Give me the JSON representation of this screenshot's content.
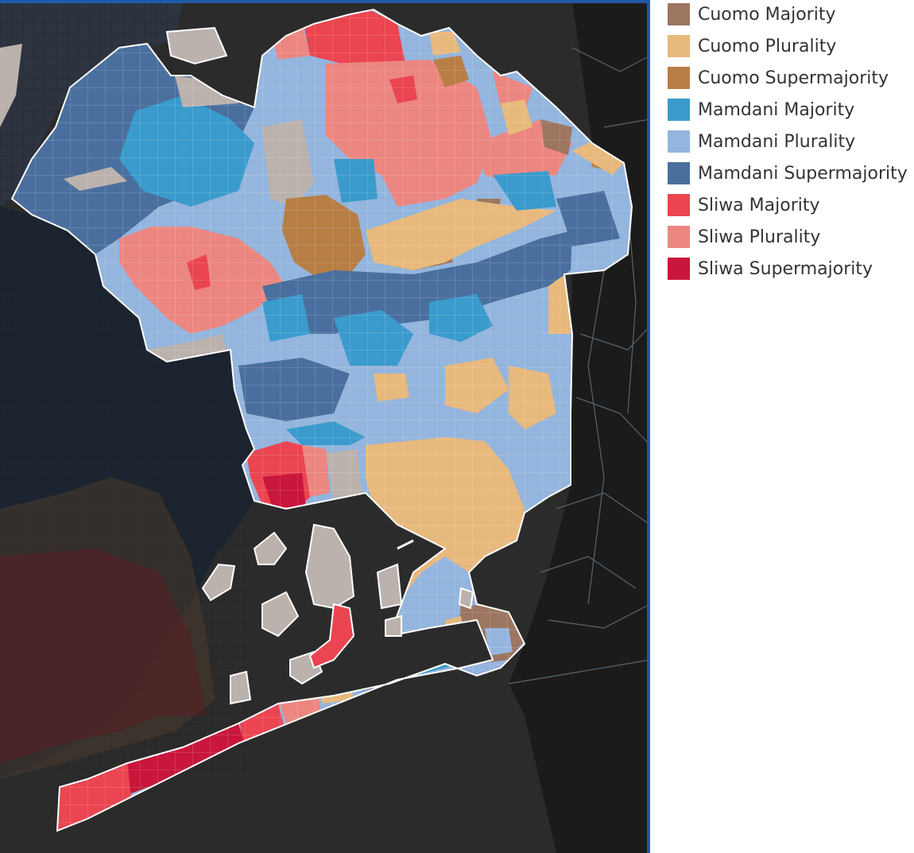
{
  "legend": {
    "items": [
      {
        "label": "Cuomo Majority",
        "color": "#9c7660"
      },
      {
        "label": "Cuomo Plurality",
        "color": "#e8b97c"
      },
      {
        "label": "Cuomo Supermajority",
        "color": "#b77e45"
      },
      {
        "label": "Mamdani Majority",
        "color": "#3a9bcc"
      },
      {
        "label": "Mamdani Plurality",
        "color": "#94b5dd"
      },
      {
        "label": "Mamdani Supermajority",
        "color": "#4a6f9e"
      },
      {
        "label": "Sliwa Majority",
        "color": "#ea4550"
      },
      {
        "label": "Sliwa Plurality",
        "color": "#ec8680"
      },
      {
        "label": "Sliwa Supermajority",
        "color": "#c8163c"
      }
    ]
  },
  "map": {
    "background_color": "#2b2b2b",
    "no_data_color": "#bbb2ad",
    "outline_color": "#ffffff"
  }
}
